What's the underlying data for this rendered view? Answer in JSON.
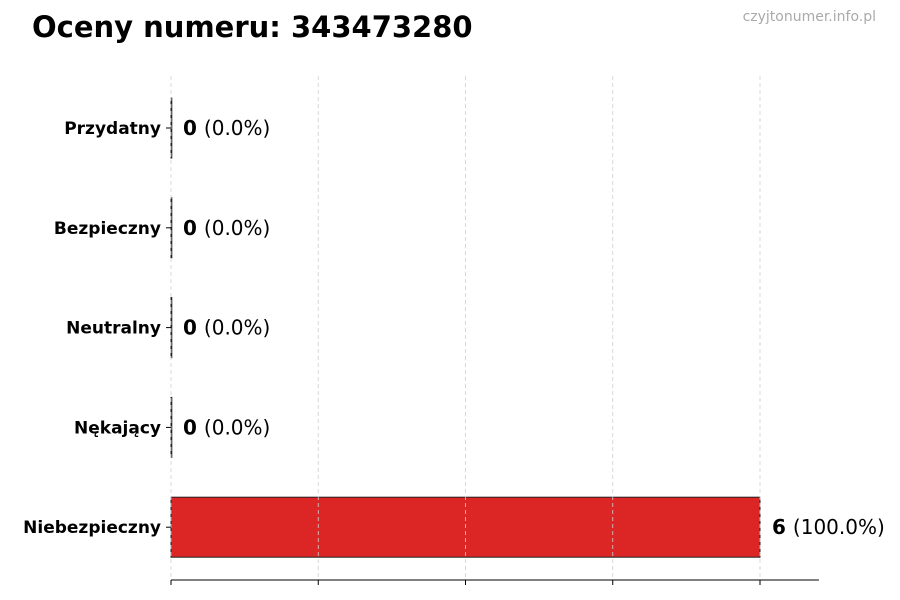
{
  "chart_data": {
    "type": "bar",
    "orientation": "horizontal",
    "title": "Oceny numeru: 343473280",
    "watermark": "czyjtonumer.info.pl",
    "categories": [
      "Przydatny",
      "Bezpieczny",
      "Neutralny",
      "Nękający",
      "Niebezpieczny"
    ],
    "values": [
      0,
      0,
      0,
      0,
      6
    ],
    "value_labels": [
      "0",
      "0",
      "0",
      "0",
      "6"
    ],
    "percent_labels": [
      "(0.0%)",
      "(0.0%)",
      "(0.0%)",
      "(0.0%)",
      "(100.0%)"
    ],
    "colors": [
      "#dc2626",
      "#dc2626",
      "#dc2626",
      "#dc2626",
      "#dc2626"
    ],
    "xlim": [
      0,
      6.6
    ],
    "xticks": [
      0,
      1.5,
      3,
      4.5,
      6
    ],
    "xtick_labels_shown": false,
    "grid": "x, dashed",
    "xlabel": "",
    "ylabel": ""
  }
}
